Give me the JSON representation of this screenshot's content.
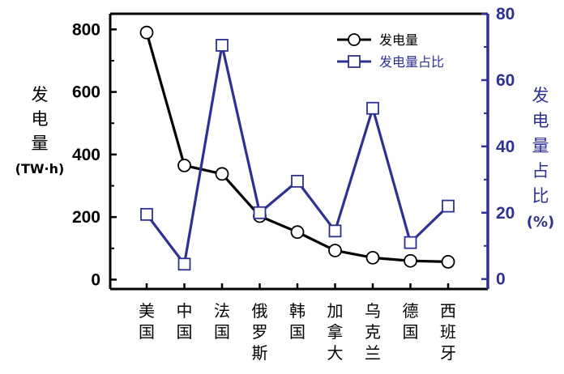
{
  "chart_data": {
    "type": "line",
    "categories": [
      "美国",
      "中国",
      "法国",
      "俄罗斯",
      "韩国",
      "加拿大",
      "乌克兰",
      "德国",
      "西班牙"
    ],
    "series": [
      {
        "name": "发电量",
        "axis": "left",
        "color": "#000000",
        "marker": "circle",
        "values": [
          790,
          365,
          338,
          203,
          152,
          93,
          70,
          60,
          57
        ]
      },
      {
        "name": "发电量占比",
        "axis": "right",
        "color": "#2e3192",
        "marker": "square",
        "values": [
          19.5,
          4.5,
          70.5,
          20,
          29.5,
          14.5,
          51.5,
          11,
          22
        ]
      }
    ],
    "y_left": {
      "label_lines": [
        "发",
        "电",
        "量",
        "(TW·h)"
      ],
      "ylim": [
        -30,
        850
      ],
      "ticks": [
        "0",
        "200",
        "400",
        "600",
        "800"
      ]
    },
    "y_right": {
      "label_lines": [
        "发",
        "电",
        "量",
        "占",
        "比",
        "(%)"
      ],
      "ylim": [
        -3,
        80
      ],
      "ticks": [
        "0",
        "20",
        "40",
        "60",
        "80"
      ]
    },
    "legend": {
      "position": "top-right",
      "entries": [
        "发电量",
        "发电量占比"
      ]
    },
    "grid": false
  }
}
